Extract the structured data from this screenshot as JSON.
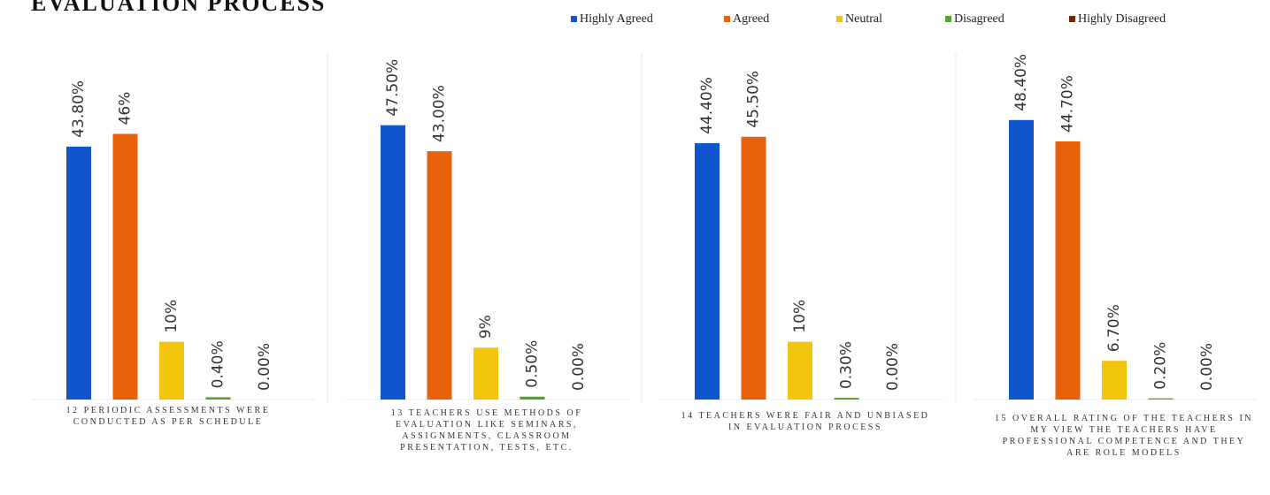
{
  "chart_data": {
    "type": "bar",
    "title": "EVALUATION PROCESS",
    "categories": [
      "12 PERIODIC ASSESSMENTS WERE CONDUCTED AS PER SCHEDULE",
      "13 TEACHERS USE METHODS OF EVALUATION LIKE SEMINARS, ASSIGNMENTS, CLASSROOM PRESENTATION, TESTS, ETC.",
      "14 TEACHERS WERE FAIR AND UNBIASED IN EVALUATION PROCESS",
      "15 OVERALL RATING OF THE TEACHERS IN MY VIEW THE TEACHERS HAVE PROFESSIONAL COMPETENCE AND THEY ARE ROLE MODELS"
    ],
    "series": [
      {
        "name": "Highly Agreed",
        "color": "#1155cc",
        "values": [
          43.8,
          47.5,
          44.4,
          48.4
        ],
        "value_labels": [
          "43.80%",
          "47.50%",
          "44.40%",
          "48.40%"
        ]
      },
      {
        "name": "Agreed",
        "color": "#e8620c",
        "values": [
          46,
          43.0,
          45.5,
          44.7
        ],
        "value_labels": [
          "46%",
          "43.00%",
          "45.50%",
          "44.70%"
        ]
      },
      {
        "name": "Neutral",
        "color": "#f2c40a",
        "values": [
          10,
          9,
          10,
          6.7
        ],
        "value_labels": [
          "10%",
          "9%",
          "10%",
          "6.70%"
        ]
      },
      {
        "name": "Disagreed",
        "color": "#5aa02c",
        "values": [
          0.4,
          0.5,
          0.3,
          0.2
        ],
        "value_labels": [
          "0.40%",
          "0.50%",
          "0.30%",
          "0.20%"
        ]
      },
      {
        "name": "Highly Disagreed",
        "color": "#6b2a0a",
        "values": [
          0,
          0,
          0,
          0
        ],
        "value_labels": [
          "0.00%",
          "0.00%",
          "0.00%",
          "0.00%"
        ]
      }
    ],
    "ylim": [
      0,
      60
    ]
  }
}
